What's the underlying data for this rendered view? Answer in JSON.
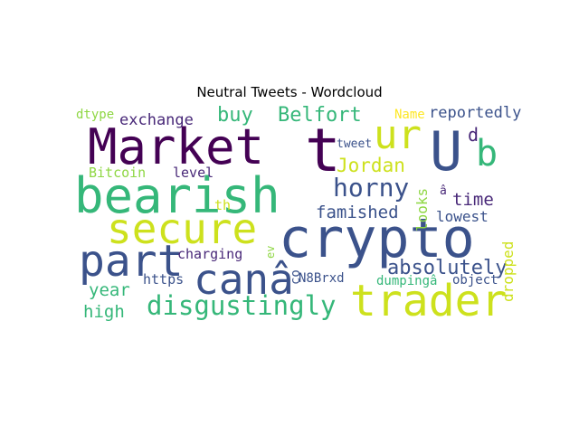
{
  "title": "Neutral Tweets - Wordcloud",
  "words": [
    {
      "text": "Market",
      "color": "#440154"
    },
    {
      "text": "t",
      "color": "#440154"
    },
    {
      "text": "ur",
      "color": "#cde11d"
    },
    {
      "text": "U",
      "color": "#3b528b"
    },
    {
      "text": "b",
      "color": "#35b779"
    },
    {
      "text": "bearish",
      "color": "#35b779"
    },
    {
      "text": "crypto",
      "color": "#3b528b"
    },
    {
      "text": "secure",
      "color": "#cde11d"
    },
    {
      "text": "part",
      "color": "#3b528b"
    },
    {
      "text": "canâ",
      "color": "#3b528b"
    },
    {
      "text": "trader",
      "color": "#cde11d"
    },
    {
      "text": "disgustingly",
      "color": "#35b779"
    },
    {
      "text": "horny",
      "color": "#3b528b"
    },
    {
      "text": "Jordan",
      "color": "#cde11d"
    },
    {
      "text": "Belfort",
      "color": "#35b779"
    },
    {
      "text": "buy",
      "color": "#35b779"
    },
    {
      "text": "famished",
      "color": "#3b528b"
    },
    {
      "text": "absolutely",
      "color": "#3b528b"
    },
    {
      "text": "year",
      "color": "#35b779"
    },
    {
      "text": "high",
      "color": "#35b779"
    },
    {
      "text": "exchange",
      "color": "#482878"
    },
    {
      "text": "reportedly",
      "color": "#3b528b"
    },
    {
      "text": "time",
      "color": "#482878"
    },
    {
      "text": "d",
      "color": "#482878"
    },
    {
      "text": "looks",
      "color": "#8fd744"
    },
    {
      "text": "dropped",
      "color": "#cde11d"
    },
    {
      "text": "lowest",
      "color": "#3b528b"
    },
    {
      "text": "Bitcoin",
      "color": "#8fd744"
    },
    {
      "text": "level",
      "color": "#482878"
    },
    {
      "text": "th",
      "color": "#cde11d"
    },
    {
      "text": "charging",
      "color": "#482878"
    },
    {
      "text": "https",
      "color": "#3b528b"
    },
    {
      "text": "N8Brxd",
      "color": "#3b528b"
    },
    {
      "text": "dumpingâ",
      "color": "#35b779"
    },
    {
      "text": "object",
      "color": "#3b528b"
    },
    {
      "text": "co",
      "color": "#3b528b"
    },
    {
      "text": "ev",
      "color": "#8fd744"
    },
    {
      "text": "â",
      "color": "#482878"
    },
    {
      "text": "dtype",
      "color": "#8fd744"
    },
    {
      "text": "Name",
      "color": "#fde725"
    },
    {
      "text": "tweet",
      "color": "#3b528b"
    }
  ]
}
